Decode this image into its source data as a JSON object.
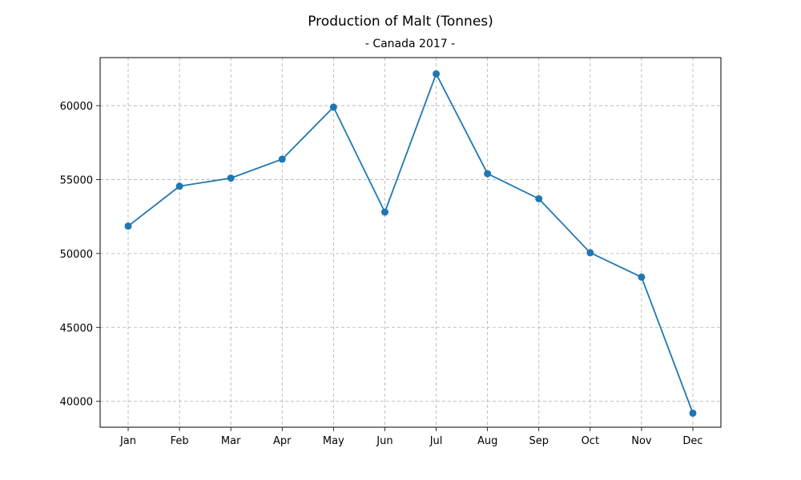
{
  "chart_data": {
    "type": "line",
    "title": "Production of Malt (Tonnes)",
    "subtitle": "- Canada 2017 -",
    "xlabel": "",
    "ylabel": "",
    "categories": [
      "Jan",
      "Feb",
      "Mar",
      "Apr",
      "May",
      "Jun",
      "Jul",
      "Aug",
      "Sep",
      "Oct",
      "Nov",
      "Dec"
    ],
    "series": [
      {
        "values": [
          51850,
          54550,
          55100,
          56380,
          59900,
          52800,
          62150,
          55400,
          53700,
          50050,
          48400,
          39200
        ],
        "color": "#1f77b4"
      }
    ],
    "yticks": [
      40000,
      45000,
      50000,
      55000,
      60000
    ],
    "ylim": [
      38250,
      63250
    ],
    "grid": true
  }
}
